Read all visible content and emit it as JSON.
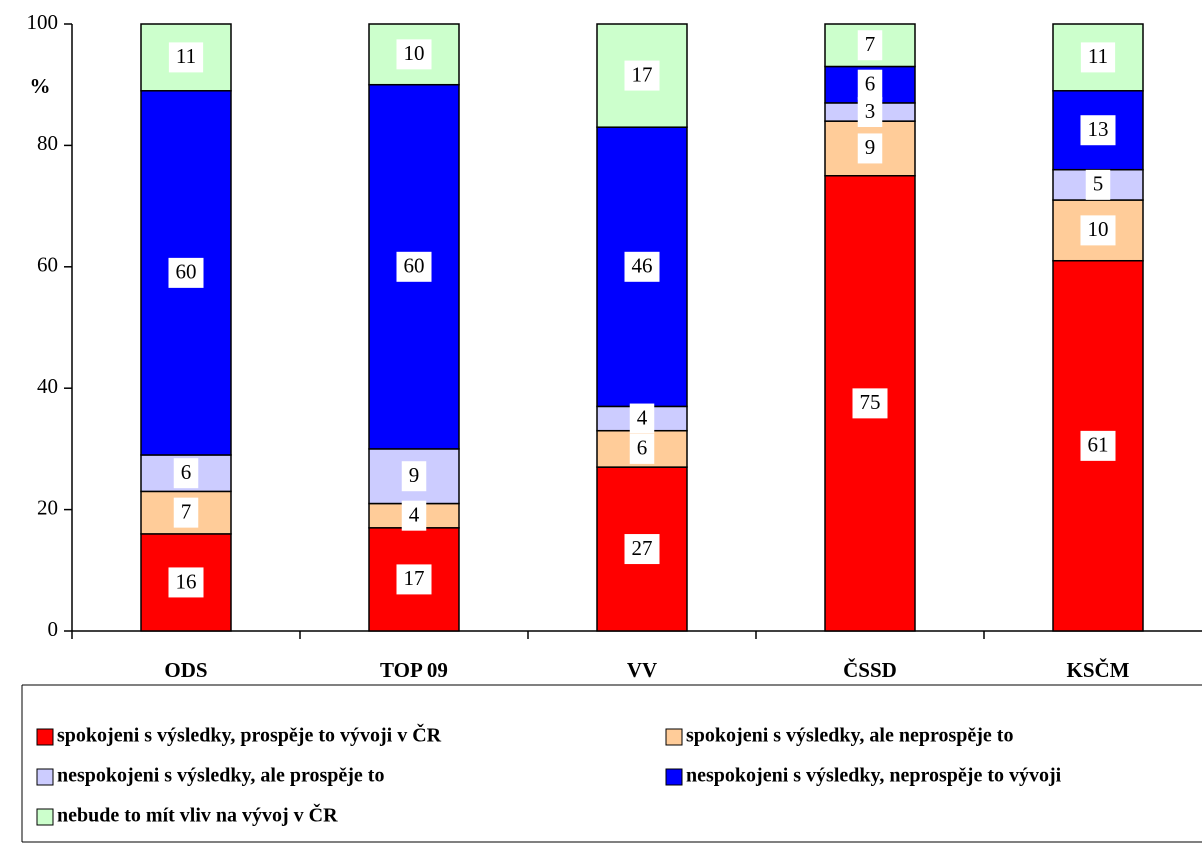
{
  "chart_data": {
    "type": "stacked_bar",
    "y_label": "%",
    "categories": [
      "ODS",
      "TOP 09",
      "VV",
      "ČSSD",
      "KSČM"
    ],
    "series": [
      {
        "name": "spokojeni s výsledky, prospěje to vývoji v ČR",
        "color": "#ff0000",
        "values": [
          16,
          17,
          27,
          75,
          61
        ]
      },
      {
        "name": "spokojeni s výsledky, ale neprospěje to",
        "color": "#ffcc99",
        "values": [
          7,
          4,
          6,
          9,
          10
        ]
      },
      {
        "name": "nespokojeni s výsledky, ale prospěje to",
        "color": "#ccccff",
        "values": [
          6,
          9,
          4,
          3,
          5
        ]
      },
      {
        "name": "nespokojeni s výsledky, neprospěje to vývoji",
        "color": "#0000ff",
        "values": [
          60,
          60,
          46,
          6,
          13
        ]
      },
      {
        "name": "nebude to mít vliv na vývoj v ČR",
        "color": "#ccffcc",
        "values": [
          11,
          10,
          17,
          7,
          11
        ]
      }
    ],
    "ylim": [
      0,
      100
    ],
    "yticks": [
      0,
      20,
      40,
      60,
      80,
      100
    ]
  }
}
